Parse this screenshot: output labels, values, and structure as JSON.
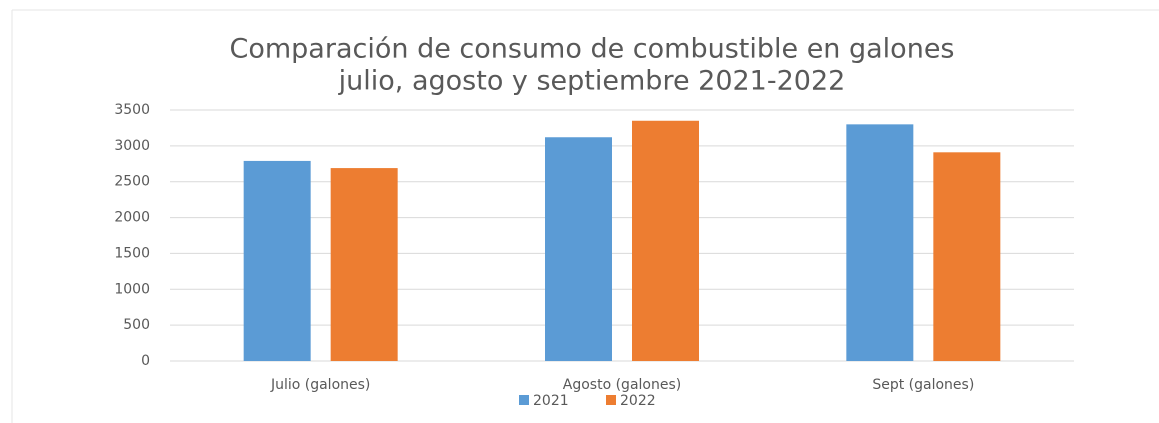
{
  "chart_data": {
    "type": "bar",
    "title": [
      "Comparación de consumo de combustible en galones",
      "julio, agosto y septiembre 2021-2022"
    ],
    "categories": [
      "Julio (galones)",
      "Agosto (galones)",
      "Sept (galones)"
    ],
    "series": [
      {
        "name": "2021",
        "color": "#5b9bd5",
        "values": [
          2790,
          3120,
          3300
        ]
      },
      {
        "name": "2022",
        "color": "#ed7d31",
        "values": [
          2690,
          3350,
          2910
        ]
      }
    ],
    "ylim": [
      0,
      3500
    ],
    "yticks": [
      0,
      500,
      1000,
      1500,
      2000,
      2500,
      3000,
      3500
    ],
    "grid": true,
    "legend": "bottom"
  }
}
